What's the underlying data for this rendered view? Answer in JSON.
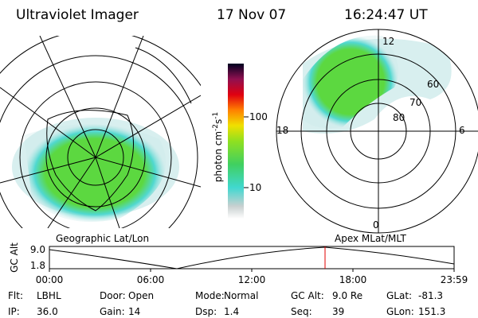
{
  "header": {
    "instrument": "Ultraviolet Imager",
    "date": "17 Nov 07",
    "time": "16:24:47 UT"
  },
  "left_panel": {
    "caption": "Geographic Lat/Lon"
  },
  "right_panel": {
    "caption": "Apex MLat/MLT",
    "mlt_labels": [
      "12",
      "6",
      "0",
      "18"
    ],
    "mlat_labels": [
      "60",
      "70",
      "80"
    ]
  },
  "colorbar": {
    "label": [
      "photon cm",
      "-2",
      "s",
      "-1"
    ],
    "ticks": [
      "100",
      "10"
    ]
  },
  "altitude_plot": {
    "axis_label": "GC Alt",
    "yticks": [
      "9.0",
      "1.8"
    ],
    "xticks": [
      "00:00",
      "06:00",
      "12:00",
      "18:00",
      "23:59"
    ]
  },
  "status": [
    [
      {
        "label": "Flt:",
        "value": "LBHL"
      },
      {
        "label": "Door:",
        "value": "Open"
      },
      {
        "label": "Mode:",
        "value": "Normal"
      },
      {
        "label": "GC Alt:",
        "value": "9.0 Re"
      },
      {
        "label": "GLat:",
        "value": "-81.3"
      }
    ],
    [
      {
        "label": "IP:",
        "value": "36.0"
      },
      {
        "label": "Gain:",
        "value": "14"
      },
      {
        "label": "Dsp:",
        "value": "1.4"
      },
      {
        "label": "Seq:",
        "value": "39"
      },
      {
        "label": "GLon:",
        "value": "151.3"
      }
    ]
  ]
}
